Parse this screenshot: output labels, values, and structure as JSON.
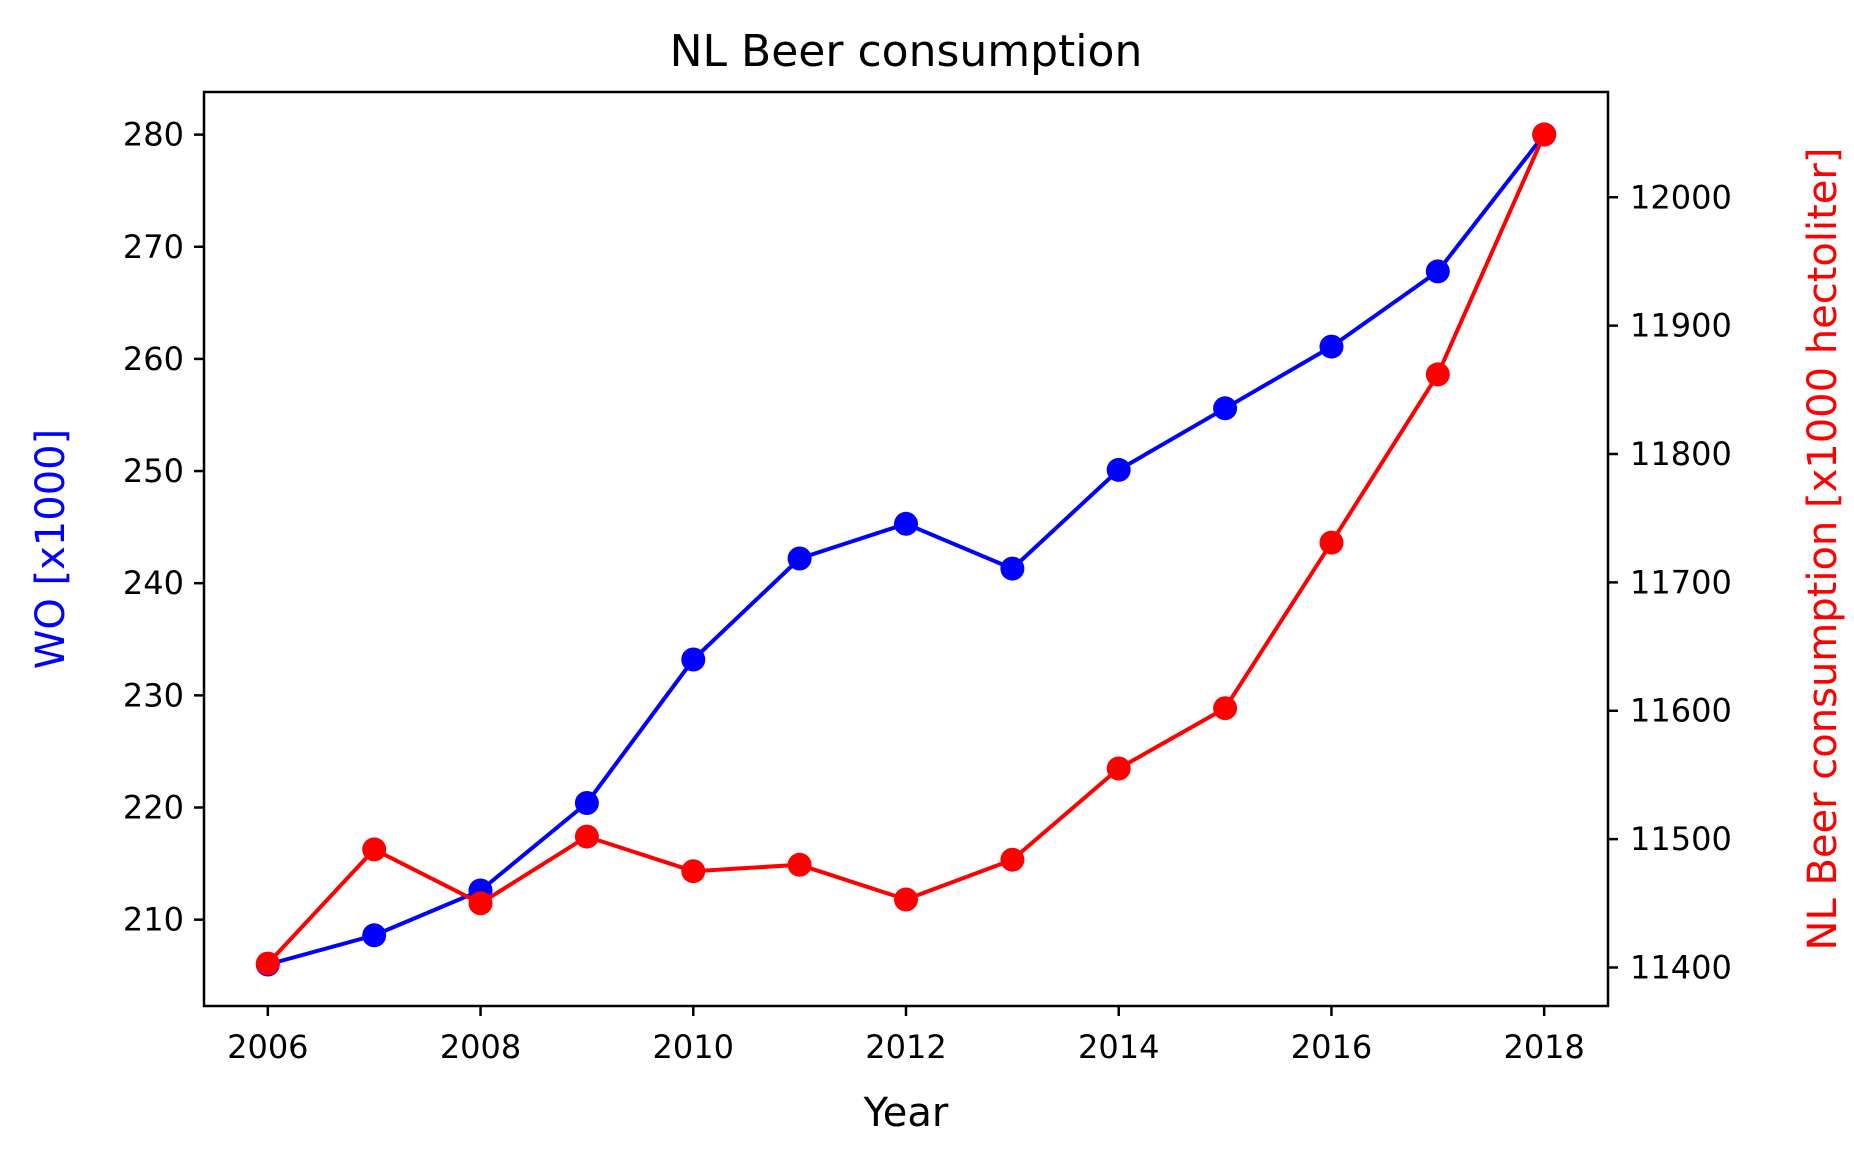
{
  "chart_data": {
    "type": "line",
    "title": "NL Beer consumption",
    "xlabel": "Year",
    "ylabel_left": "WO [x1000]",
    "ylabel_right": "NL Beer consumption [x1000 hectoliter]",
    "x": [
      2006,
      2007,
      2008,
      2009,
      2010,
      2011,
      2012,
      2013,
      2014,
      2015,
      2016,
      2017,
      2018
    ],
    "xlim": [
      2005.4,
      2018.6
    ],
    "xticks": [
      2006,
      2008,
      2010,
      2012,
      2014,
      2016,
      2018
    ],
    "series": [
      {
        "name": "WO [x1000]",
        "axis": "left",
        "color": "#0000ff",
        "values": [
          206.0,
          208.6,
          212.6,
          220.4,
          233.2,
          242.2,
          245.3,
          241.3,
          250.1,
          255.6,
          261.1,
          267.8,
          280.0
        ]
      },
      {
        "name": "NL Beer consumption [x1000 hectoliter]",
        "axis": "right",
        "color": "#ff0000",
        "values": [
          11403,
          11492,
          11450,
          11502,
          11475,
          11480,
          11453,
          11484,
          11555,
          11602,
          11731,
          11862,
          12049
        ]
      }
    ],
    "ylim_left": [
      202.3,
      283.8
    ],
    "yticks_left": [
      210,
      220,
      230,
      240,
      250,
      260,
      270,
      280
    ],
    "ylim_right": [
      11370,
      12082
    ],
    "yticks_right": [
      11400,
      11500,
      11600,
      11700,
      11800,
      11900,
      12000
    ],
    "colors": {
      "axis": "#000000",
      "left": "#0000ff",
      "right": "#ff0000"
    }
  }
}
